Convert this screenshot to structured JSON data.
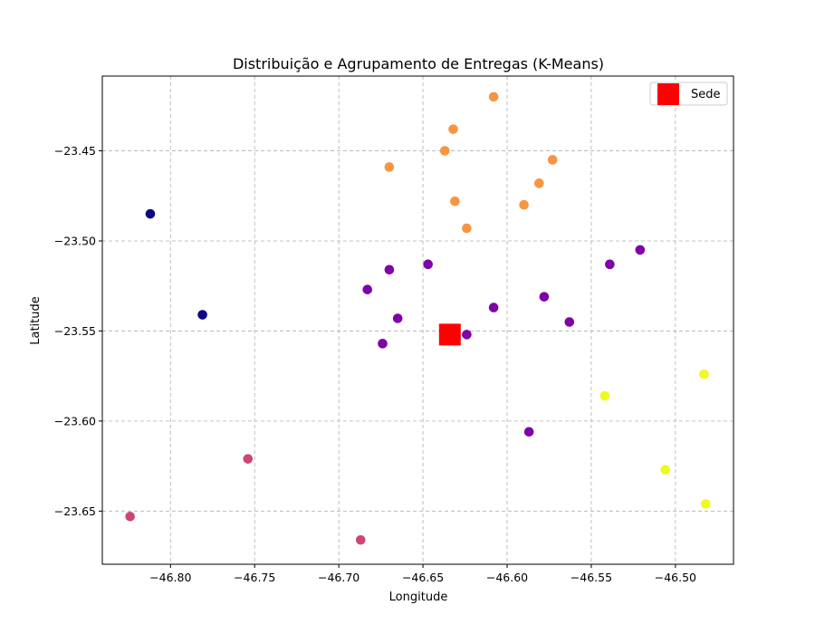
{
  "chart_data": {
    "type": "scatter",
    "title": "Distribuição e Agrupamento de Entregas (K-Means)",
    "xlabel": "Longitude",
    "ylabel": "Latitude",
    "xlim": [
      -46.8405,
      -46.4655
    ],
    "ylim": [
      -23.6795,
      -23.4085
    ],
    "xticks": [
      -46.8,
      -46.75,
      -46.7,
      -46.65,
      -46.6,
      -46.55,
      -46.5
    ],
    "xtick_labels": [
      "−46.80",
      "−46.75",
      "−46.70",
      "−46.65",
      "−46.60",
      "−46.55",
      "−46.50"
    ],
    "yticks": [
      -23.45,
      -23.5,
      -23.55,
      -23.6,
      -23.65
    ],
    "ytick_labels": [
      "−23.45",
      "−23.50",
      "−23.55",
      "−23.60",
      "−23.65"
    ],
    "grid": true,
    "legend_position": "top-right",
    "legend": [
      {
        "label": "Sede",
        "color": "#ff0000",
        "marker": "square"
      }
    ],
    "headquarters": {
      "x": -46.634,
      "y": -23.552,
      "color": "#ff0000"
    },
    "clusters": [
      {
        "color": "#0d0887",
        "points": [
          [
            -46.812,
            -23.485
          ],
          [
            -46.781,
            -23.541
          ]
        ]
      },
      {
        "color": "#7e03a8",
        "points": [
          [
            -46.67,
            -23.516
          ],
          [
            -46.683,
            -23.527
          ],
          [
            -46.647,
            -23.513
          ],
          [
            -46.665,
            -23.543
          ],
          [
            -46.674,
            -23.557
          ],
          [
            -46.624,
            -23.552
          ],
          [
            -46.608,
            -23.537
          ],
          [
            -46.578,
            -23.531
          ],
          [
            -46.563,
            -23.545
          ],
          [
            -46.539,
            -23.513
          ],
          [
            -46.521,
            -23.505
          ],
          [
            -46.587,
            -23.606
          ]
        ]
      },
      {
        "color": "#cc4778",
        "points": [
          [
            -46.824,
            -23.653
          ],
          [
            -46.754,
            -23.621
          ],
          [
            -46.687,
            -23.666
          ]
        ]
      },
      {
        "color": "#f89540",
        "points": [
          [
            -46.608,
            -23.42
          ],
          [
            -46.632,
            -23.438
          ],
          [
            -46.637,
            -23.45
          ],
          [
            -46.67,
            -23.459
          ],
          [
            -46.573,
            -23.455
          ],
          [
            -46.581,
            -23.468
          ],
          [
            -46.59,
            -23.48
          ],
          [
            -46.631,
            -23.478
          ],
          [
            -46.624,
            -23.493
          ]
        ]
      },
      {
        "color": "#f0f921",
        "points": [
          [
            -46.542,
            -23.586
          ],
          [
            -46.483,
            -23.574
          ],
          [
            -46.506,
            -23.627
          ],
          [
            -46.482,
            -23.646
          ]
        ]
      }
    ]
  }
}
